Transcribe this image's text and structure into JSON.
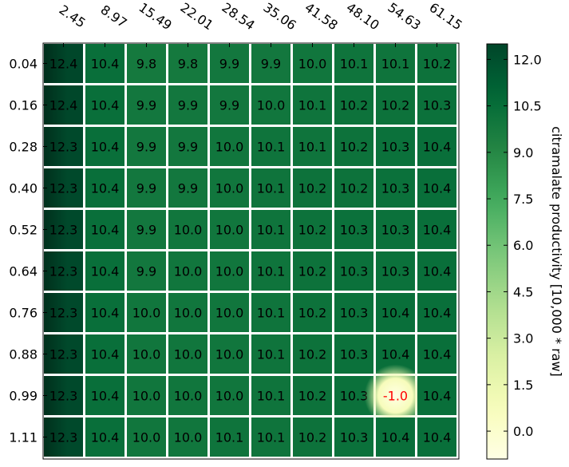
{
  "chart_data": {
    "type": "heatmap",
    "x_ticks": [
      "2.45",
      "8.97",
      "15.49",
      "22.01",
      "28.54",
      "35.06",
      "41.58",
      "48.10",
      "54.63",
      "61.15"
    ],
    "y_ticks": [
      "0.04",
      "0.16",
      "0.28",
      "0.40",
      "0.52",
      "0.64",
      "0.76",
      "0.88",
      "0.99",
      "1.11"
    ],
    "values": [
      [
        12.4,
        10.4,
        9.8,
        9.8,
        9.9,
        9.9,
        10.0,
        10.1,
        10.1,
        10.2
      ],
      [
        12.4,
        10.4,
        9.9,
        9.9,
        9.9,
        10.0,
        10.1,
        10.2,
        10.2,
        10.3
      ],
      [
        12.3,
        10.4,
        9.9,
        9.9,
        10.0,
        10.1,
        10.1,
        10.2,
        10.3,
        10.4
      ],
      [
        12.3,
        10.4,
        9.9,
        9.9,
        10.0,
        10.1,
        10.2,
        10.2,
        10.3,
        10.4
      ],
      [
        12.3,
        10.4,
        9.9,
        10.0,
        10.0,
        10.1,
        10.2,
        10.3,
        10.3,
        10.4
      ],
      [
        12.3,
        10.4,
        9.9,
        10.0,
        10.0,
        10.1,
        10.2,
        10.3,
        10.3,
        10.4
      ],
      [
        12.3,
        10.4,
        10.0,
        10.0,
        10.0,
        10.1,
        10.2,
        10.3,
        10.4,
        10.4
      ],
      [
        12.3,
        10.4,
        10.0,
        10.0,
        10.0,
        10.1,
        10.2,
        10.3,
        10.4,
        10.4
      ],
      [
        12.3,
        10.4,
        10.0,
        10.0,
        10.0,
        10.1,
        10.2,
        10.3,
        -1.0,
        10.4
      ],
      [
        12.3,
        10.4,
        10.0,
        10.0,
        10.1,
        10.1,
        10.2,
        10.3,
        10.4,
        10.4
      ]
    ],
    "colorbar": {
      "label": "citramalate productivity [10,000 * raw]",
      "ticks": [
        "0.0",
        "1.5",
        "3.0",
        "4.5",
        "6.0",
        "7.5",
        "9.0",
        "10.5",
        "12.0"
      ],
      "vmin": -0.9,
      "vmax": 12.5,
      "colormap": "YlGn"
    },
    "highlight_color": "#ff0000",
    "grid": false
  }
}
